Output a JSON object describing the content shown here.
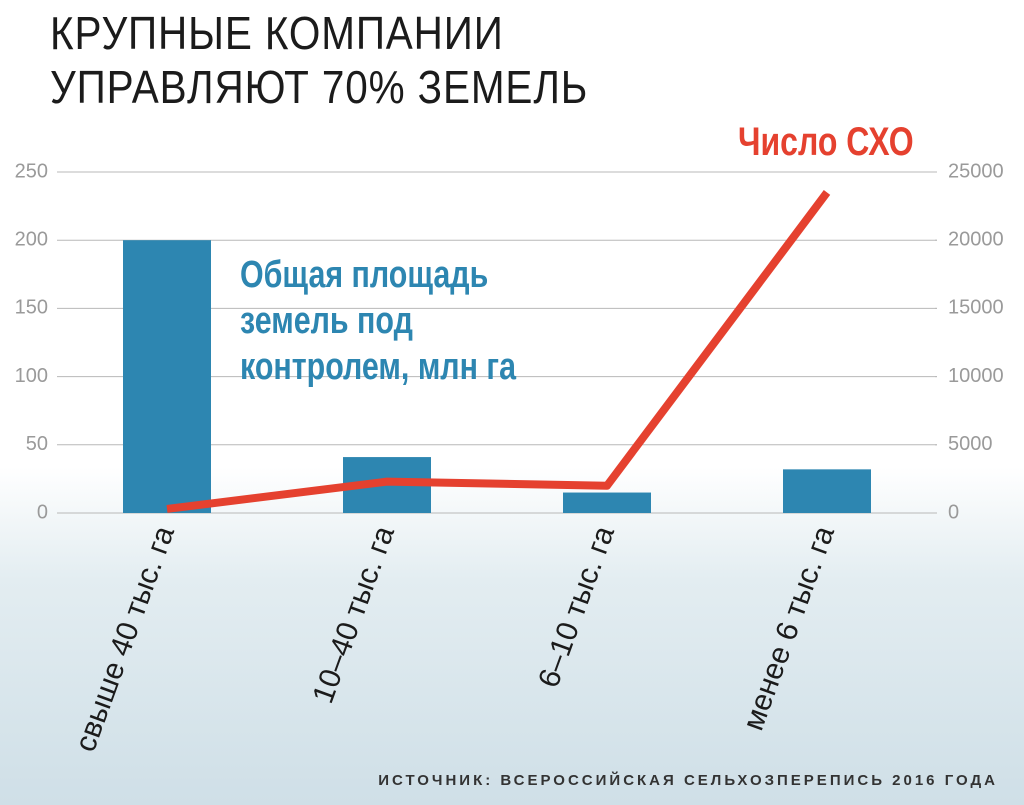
{
  "chart_data": {
    "type": "bar",
    "title": [
      "КРУПНЫЕ КОМПАНИИ",
      "УПРАВЛЯЮТ 70% ЗЕМЕЛЬ"
    ],
    "categories": [
      "свыше 40 тыс. га",
      "10–40 тыс. га",
      "6–10 тыс. га",
      "менее 6 тыс. га"
    ],
    "series": [
      {
        "name": "Общая площадь земель под контролем, млн га",
        "type": "bar",
        "color": "#2d86b1",
        "values": [
          200,
          41,
          15,
          32
        ]
      },
      {
        "name": "Число СХО",
        "type": "line",
        "color": "#e5412f",
        "axis": "y2",
        "values": [
          300,
          2300,
          2000,
          23500
        ]
      }
    ],
    "ylim": [
      0,
      250
    ],
    "yticks": [
      0,
      50,
      100,
      150,
      200,
      250
    ],
    "y2lim": [
      0,
      25000
    ],
    "y2ticks": [
      0,
      5000,
      10000,
      15000,
      20000,
      25000
    ],
    "grid": true,
    "source": "ИСТОЧНИК: ВСЕРОССИЙСКАЯ СЕЛЬХОЗПЕРЕПИСЬ 2016 ГОДА"
  }
}
